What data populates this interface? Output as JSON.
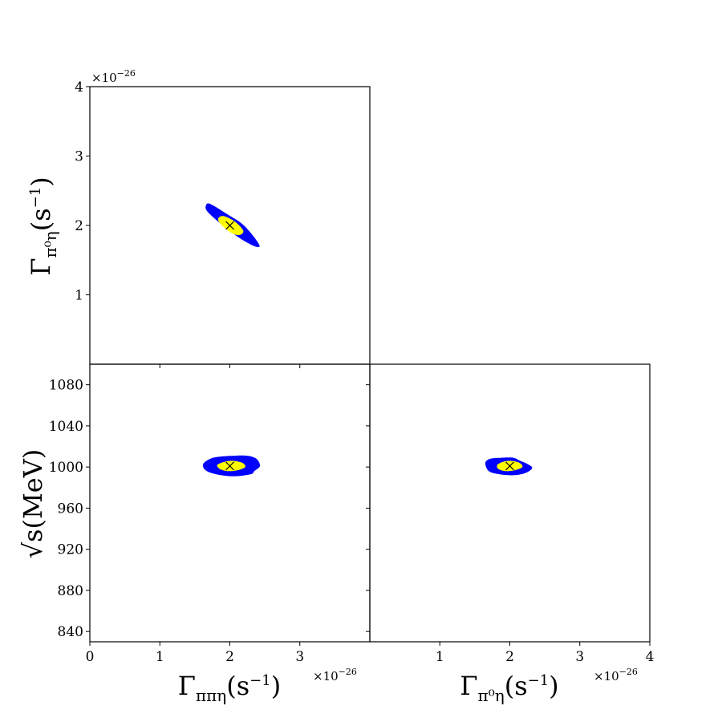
{
  "colors": {
    "outer_contour": "#0000ff",
    "inner_contour": "#ffff00",
    "marker": "#000000",
    "axes": "#000000"
  },
  "chart_data": [
    {
      "panel": "top-left",
      "type": "contour",
      "xlim": [
        0,
        4
      ],
      "ylim": [
        0,
        4
      ],
      "x_ticks": [
        1,
        2,
        3
      ],
      "y_ticks": [
        1,
        2,
        3,
        4
      ],
      "y_ticklabels": [
        "1",
        "2",
        "3",
        "4"
      ],
      "multiplier_text": "×10",
      "multiplier_exponent": "−26",
      "ylabel": {
        "main": "Γ",
        "sub": "π⁰η",
        "paren": "(s",
        "sup": "−1",
        "close": ")"
      },
      "best_fit": {
        "x": 2.0,
        "y": 2.0
      },
      "outer_contour_points": [
        [
          1.66,
          2.29
        ],
        [
          1.72,
          2.31
        ],
        [
          1.95,
          2.17
        ],
        [
          2.2,
          2.0
        ],
        [
          2.41,
          1.74
        ],
        [
          2.38,
          1.69
        ],
        [
          2.15,
          1.81
        ],
        [
          1.9,
          2.0
        ],
        [
          1.68,
          2.2
        ]
      ],
      "inner_contour_points": [
        [
          1.85,
          2.12
        ],
        [
          1.93,
          2.13
        ],
        [
          2.08,
          2.05
        ],
        [
          2.19,
          1.93
        ],
        [
          2.16,
          1.87
        ],
        [
          2.07,
          1.87
        ],
        [
          1.94,
          1.95
        ],
        [
          1.84,
          2.06
        ]
      ]
    },
    {
      "panel": "bottom-left",
      "type": "contour",
      "xlim": [
        0,
        4
      ],
      "ylim": [
        830,
        1100
      ],
      "x_ticks": [
        0,
        1,
        2,
        3
      ],
      "x_ticklabels": [
        "0",
        "1",
        "2",
        "3"
      ],
      "y_ticks": [
        840,
        880,
        920,
        960,
        1000,
        1040,
        1080
      ],
      "y_ticklabels": [
        "840",
        "880",
        "920",
        "960",
        "1000",
        "1040",
        "1080"
      ],
      "multiplier_text": "×10",
      "multiplier_exponent": "−26",
      "xlabel": {
        "main": "Γ",
        "sub": "ππη",
        "paren": "(s",
        "sup": "−1",
        "close": ")"
      },
      "ylabel": {
        "main": "√s",
        "paren": "(MeV)"
      },
      "best_fit": {
        "x": 2.0,
        "y": 1001
      },
      "outer_contour_points": [
        [
          1.62,
          1003
        ],
        [
          1.72,
          1008
        ],
        [
          1.85,
          1010
        ],
        [
          2.05,
          1011
        ],
        [
          2.25,
          1011
        ],
        [
          2.38,
          1008
        ],
        [
          2.43,
          1001
        ],
        [
          2.35,
          996
        ],
        [
          2.3,
          993
        ],
        [
          2.05,
          991
        ],
        [
          1.8,
          993
        ],
        [
          1.65,
          997
        ]
      ],
      "inner_contour_points": [
        [
          1.82,
          1002
        ],
        [
          1.92,
          1005
        ],
        [
          2.05,
          1006
        ],
        [
          2.18,
          1004
        ],
        [
          2.22,
          1000
        ],
        [
          2.12,
          997
        ],
        [
          1.98,
          996
        ],
        [
          1.86,
          998
        ]
      ]
    },
    {
      "panel": "bottom-right",
      "type": "contour",
      "xlim": [
        0,
        4
      ],
      "ylim": [
        830,
        1100
      ],
      "x_ticks": [
        1,
        2,
        3,
        4
      ],
      "x_ticklabels": [
        "1",
        "2",
        "3",
        "4"
      ],
      "y_ticks": [
        840,
        880,
        920,
        960,
        1000,
        1040,
        1080
      ],
      "multiplier_text": "×10",
      "multiplier_exponent": "−26",
      "xlabel": {
        "main": "Γ",
        "sub": "π⁰η",
        "paren": "(s",
        "sup": "−1",
        "close": ")"
      },
      "best_fit": {
        "x": 2.0,
        "y": 1001
      },
      "outer_contour_points": [
        [
          1.65,
          1004
        ],
        [
          1.72,
          1008
        ],
        [
          1.88,
          1009
        ],
        [
          2.05,
          1009
        ],
        [
          2.15,
          1006
        ],
        [
          2.25,
          1003
        ],
        [
          2.32,
          999
        ],
        [
          2.22,
          994
        ],
        [
          2.05,
          992
        ],
        [
          1.85,
          993
        ],
        [
          1.7,
          996
        ]
      ],
      "inner_contour_points": [
        [
          1.82,
          1002
        ],
        [
          1.9,
          1005
        ],
        [
          2.02,
          1006
        ],
        [
          2.14,
          1004
        ],
        [
          2.18,
          1000
        ],
        [
          2.08,
          997
        ],
        [
          1.95,
          996
        ],
        [
          1.84,
          998
        ]
      ]
    }
  ]
}
